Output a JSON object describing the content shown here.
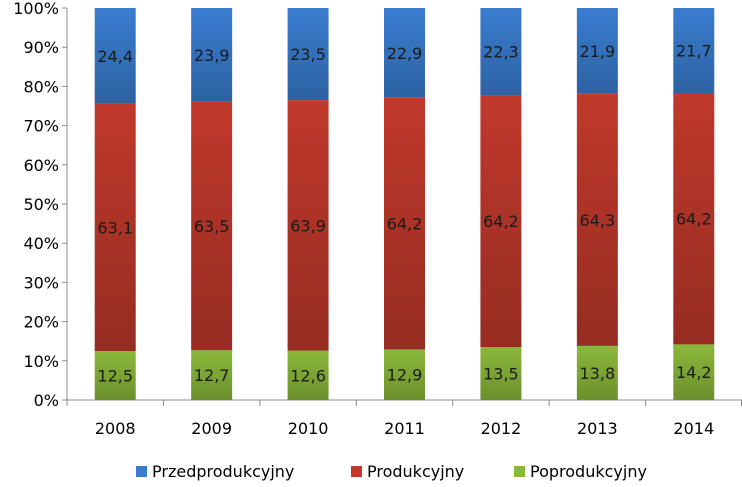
{
  "chart_data": {
    "type": "bar",
    "stacked": true,
    "percent_stacked": true,
    "categories": [
      "2008",
      "2009",
      "2010",
      "2011",
      "2012",
      "2013",
      "2014"
    ],
    "series": [
      {
        "name": "Poprodukcyjny",
        "color": "#8ab83a",
        "values": [
          12.5,
          12.7,
          12.6,
          12.9,
          13.5,
          13.8,
          14.2
        ],
        "labels": [
          "12,5",
          "12,7",
          "12,6",
          "12,9",
          "13,5",
          "13,8",
          "14,2"
        ]
      },
      {
        "name": "Produkcyjny",
        "color": "#c0392b",
        "values": [
          63.1,
          63.5,
          63.9,
          64.2,
          64.2,
          64.3,
          64.2
        ],
        "labels": [
          "63,1",
          "63,5",
          "63,9",
          "64,2",
          "64,2",
          "64,3",
          "64,2"
        ]
      },
      {
        "name": "Przedprodukcyjny",
        "color": "#3a7dd0",
        "values": [
          24.4,
          23.9,
          23.5,
          22.9,
          22.3,
          21.9,
          21.7
        ],
        "labels": [
          "24,4",
          "23,9",
          "23,5",
          "22,9",
          "22,3",
          "21,9",
          "21,7"
        ]
      }
    ],
    "legend_order": [
      "Przedprodukcyjny",
      "Produkcyjny",
      "Poprodukcyjny"
    ],
    "yticks": [
      "0%",
      "10%",
      "20%",
      "30%",
      "40%",
      "50%",
      "60%",
      "70%",
      "80%",
      "90%",
      "100%"
    ],
    "ylim": [
      0,
      100
    ],
    "grid": false,
    "legend_position": "bottom"
  }
}
